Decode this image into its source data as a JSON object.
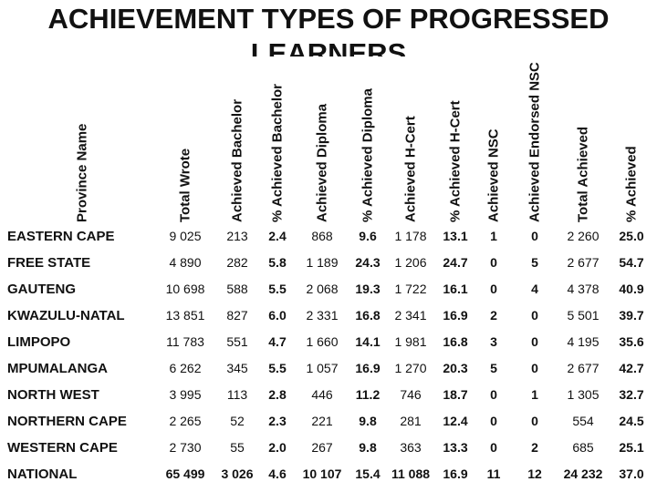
{
  "title": "ACHIEVEMENT TYPES OF PROGRESSED LEARNERS",
  "table": {
    "headers": [
      "Province Name",
      "Total Wrote",
      "Achieved Bachelor",
      "% Achieved Bachelor",
      "Achieved Diploma",
      "% Achieved Diploma",
      "Achieved H-Cert",
      "% Achieved H-Cert",
      "Achieved NSC",
      "Achieved Endorsed NSC",
      "Total Achieved",
      "% Achieved"
    ],
    "rows": [
      [
        "EASTERN CAPE",
        "9 025",
        "213",
        "2.4",
        "868",
        "9.6",
        "1 178",
        "13.1",
        "1",
        "0",
        "2 260",
        "25.0"
      ],
      [
        "FREE STATE",
        "4 890",
        "282",
        "5.8",
        "1 189",
        "24.3",
        "1 206",
        "24.7",
        "0",
        "5",
        "2 677",
        "54.7"
      ],
      [
        "GAUTENG",
        "10 698",
        "588",
        "5.5",
        "2 068",
        "19.3",
        "1 722",
        "16.1",
        "0",
        "4",
        "4 378",
        "40.9"
      ],
      [
        "KWAZULU-NATAL",
        "13 851",
        "827",
        "6.0",
        "2 331",
        "16.8",
        "2 341",
        "16.9",
        "2",
        "0",
        "5 501",
        "39.7"
      ],
      [
        "LIMPOPO",
        "11 783",
        "551",
        "4.7",
        "1 660",
        "14.1",
        "1 981",
        "16.8",
        "3",
        "0",
        "4 195",
        "35.6"
      ],
      [
        "MPUMALANGA",
        "6 262",
        "345",
        "5.5",
        "1 057",
        "16.9",
        "1 270",
        "20.3",
        "5",
        "0",
        "2 677",
        "42.7"
      ],
      [
        "NORTH WEST",
        "3 995",
        "113",
        "2.8",
        "446",
        "11.2",
        "746",
        "18.7",
        "0",
        "1",
        "1 305",
        "32.7"
      ],
      [
        "NORTHERN CAPE",
        "2 265",
        "52",
        "2.3",
        "221",
        "9.8",
        "281",
        "12.4",
        "0",
        "0",
        "554",
        "24.5"
      ],
      [
        "WESTERN CAPE",
        "2 730",
        "55",
        "2.0",
        "267",
        "9.8",
        "363",
        "13.3",
        "0",
        "2",
        "685",
        "25.1"
      ],
      [
        "NATIONAL",
        "65 499",
        "3 026",
        "4.6",
        "10 107",
        "15.4",
        "11 088",
        "16.9",
        "11",
        "12",
        "24 232",
        "37.0"
      ]
    ]
  }
}
